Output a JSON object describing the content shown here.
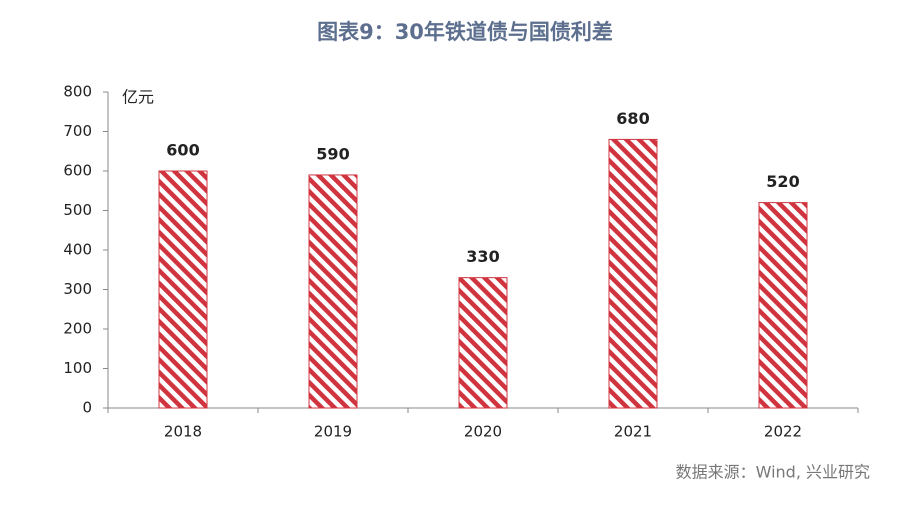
{
  "chart_data": {
    "type": "bar",
    "title": "图表9：30年铁道债与国债利差",
    "unit_label": "亿元",
    "source": "数据来源：Wind, 兴业研究",
    "categories": [
      "2018",
      "2019",
      "2020",
      "2021",
      "2022"
    ],
    "values": [
      600,
      590,
      330,
      680,
      520
    ],
    "color": "#d0343f",
    "fill_pattern": "hatch",
    "ylim": [
      0,
      800
    ],
    "yticks": [
      0,
      100,
      200,
      300,
      400,
      500,
      600,
      700,
      800
    ]
  }
}
